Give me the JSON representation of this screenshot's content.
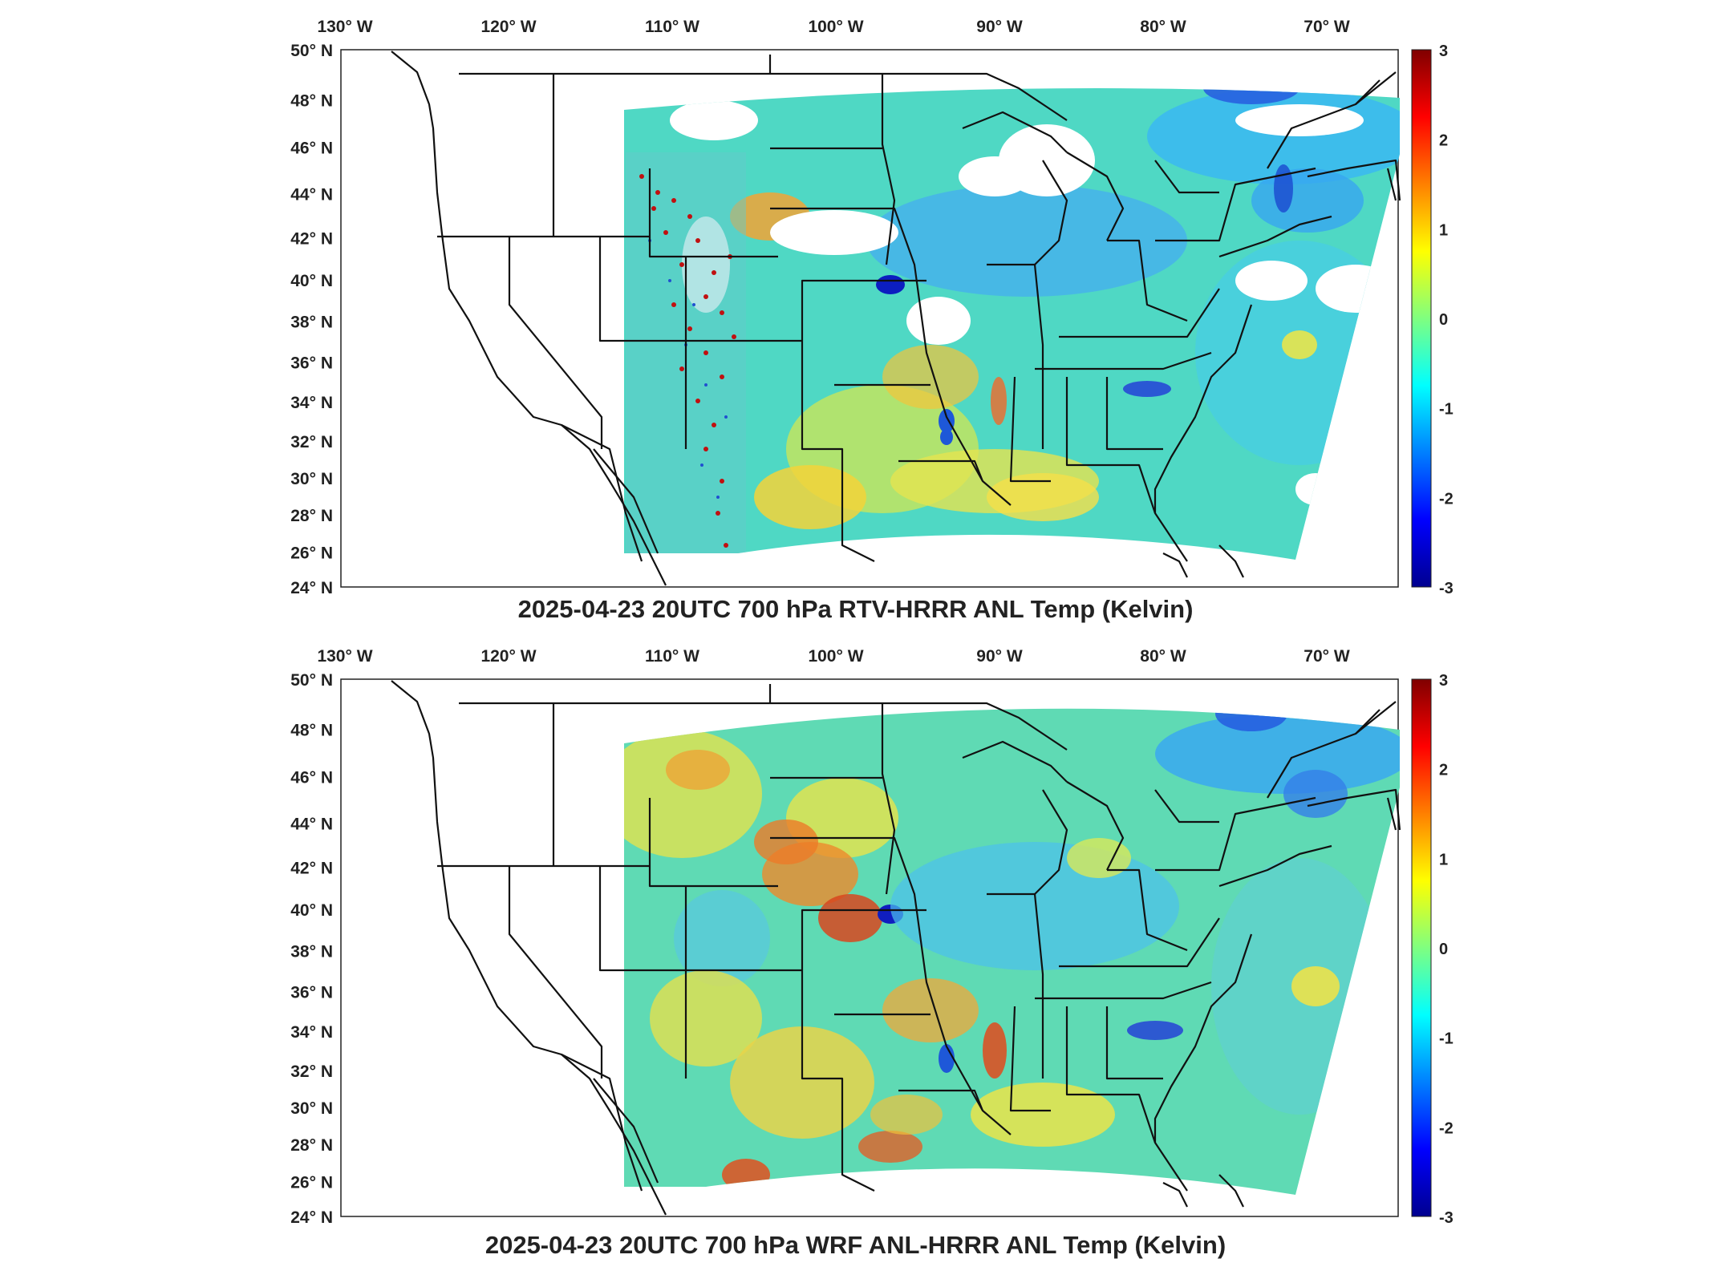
{
  "panels": [
    {
      "title": "2025-04-23 20UTC 700 hPa RTV-HRRR ANL Temp (Kelvin)",
      "field": "sparse"
    },
    {
      "title": "2025-04-23 20UTC 700 hPa WRF ANL-HRRR ANL Temp (Kelvin)",
      "field": "full"
    }
  ],
  "lon_labels": [
    "130",
    "120",
    "110",
    "100",
    "90",
    "80",
    "70"
  ],
  "lon_hemisphere": "W",
  "lat_labels": [
    "50",
    "48",
    "46",
    "44",
    "42",
    "40",
    "38",
    "36",
    "34",
    "32",
    "30",
    "28",
    "26",
    "24"
  ],
  "lat_hemisphere": "N",
  "degree_symbol": "°",
  "colorbar": {
    "colormap": "jet",
    "range": [
      -3,
      3
    ],
    "ticks": [
      "3",
      "2",
      "1",
      "0",
      "-1",
      "-2",
      "-3"
    ]
  },
  "colors": {
    "cold_anomaly": "#0a2ad8",
    "neutral": "#2fd6c8",
    "warm_anomaly": "#d82a0a",
    "missing": "#ffffff",
    "boundaries": "#111111"
  }
}
